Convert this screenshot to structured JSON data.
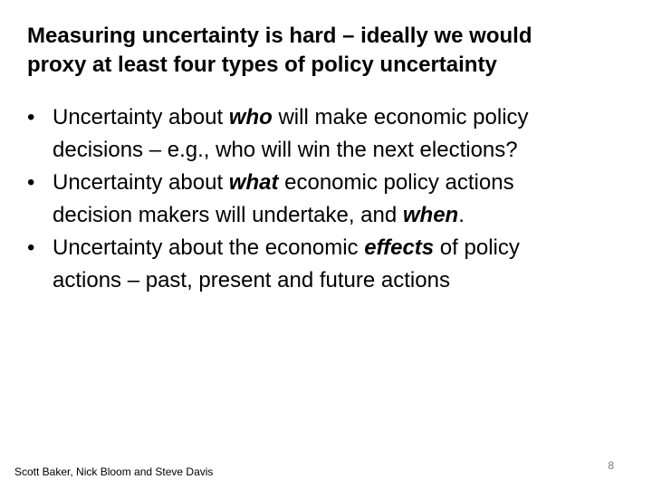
{
  "slide": {
    "title_lines": [
      "Measuring uncertainty is hard – ideally we would",
      "proxy at least four types of policy uncertainty"
    ],
    "bullets": [
      {
        "bullet": "•",
        "line1_pre": "Uncertainty about ",
        "line1_em": "who",
        "line1_post": " will make economic policy",
        "line2": "decisions – e.g., who will win the next elections?"
      },
      {
        "bullet": "•",
        "line1_pre": "Uncertainty about ",
        "line1_em": "what",
        "line1_post": " economic policy actions",
        "line2_pre": "decision makers will undertake, and ",
        "line2_em": "when",
        "line2_post": "."
      },
      {
        "bullet": "•",
        "line1_pre": "Uncertainty about the economic ",
        "line1_em": "effects",
        "line1_post": " of policy",
        "line2": "actions – past, present and future actions"
      }
    ],
    "footer_authors": "Scott Baker, Nick Bloom and Steve Davis",
    "page_number": "8"
  }
}
